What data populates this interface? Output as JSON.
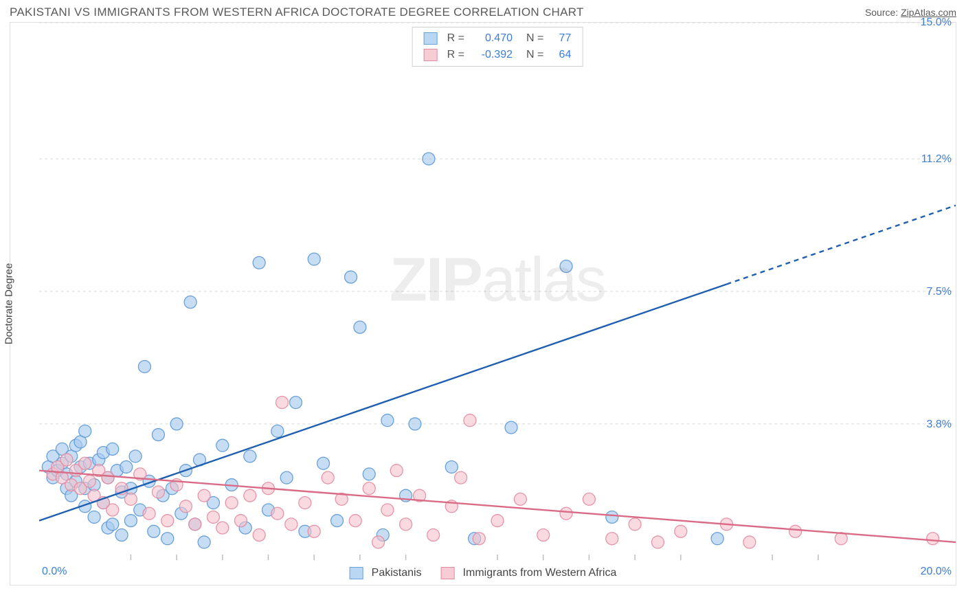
{
  "title": "PAKISTANI VS IMMIGRANTS FROM WESTERN AFRICA DOCTORATE DEGREE CORRELATION CHART",
  "source_prefix": "Source: ",
  "source_name": "ZipAtlas.com",
  "watermark": {
    "bold": "ZIP",
    "rest": "atlas"
  },
  "ylabel": "Doctorate Degree",
  "chart": {
    "type": "scatter-with-regression",
    "background_color": "#ffffff",
    "border_color": "#e0e0e0",
    "grid_color": "#d8d8d8",
    "grid_dash": "4,4",
    "x": {
      "min": 0.0,
      "max": 20.0,
      "label_min": "0.0%",
      "label_max": "20.0%"
    },
    "y": {
      "min": 0.0,
      "max": 15.0,
      "gridlines": [
        {
          "value": 3.8,
          "label": "3.8%"
        },
        {
          "value": 7.5,
          "label": "7.5%"
        },
        {
          "value": 11.2,
          "label": "11.2%"
        },
        {
          "value": 15.0,
          "label": "15.0%"
        }
      ]
    },
    "tick_color": "#bdbdbd",
    "x_ticks": [
      2,
      3,
      4,
      5,
      6,
      7,
      8,
      10,
      11,
      12,
      13,
      14,
      16,
      17
    ],
    "axis_label_color": "#3b7dd8",
    "series": [
      {
        "key": "pakistanis",
        "label": "Pakistanis",
        "R_label": "R =",
        "R": "0.470",
        "N_label": "N =",
        "N": "77",
        "marker": {
          "fill": "#a7cbee",
          "stroke": "#5c98d6",
          "opacity": 0.65,
          "r": 9
        },
        "swatch": {
          "fill": "#b9d6f2",
          "stroke": "#6aa0d8"
        },
        "line": {
          "color": "#1f5fb0",
          "width": 2.4,
          "solid_until_x": 15.0,
          "y_at_xmin": 1.1,
          "y_at_xmax": 9.9
        },
        "points": [
          [
            0.2,
            2.6
          ],
          [
            0.3,
            2.3
          ],
          [
            0.3,
            2.9
          ],
          [
            0.4,
            2.5
          ],
          [
            0.5,
            2.7
          ],
          [
            0.5,
            3.1
          ],
          [
            0.6,
            2.0
          ],
          [
            0.6,
            2.4
          ],
          [
            0.7,
            2.9
          ],
          [
            0.7,
            1.8
          ],
          [
            0.8,
            2.2
          ],
          [
            0.8,
            3.2
          ],
          [
            0.9,
            3.3
          ],
          [
            0.9,
            2.6
          ],
          [
            1.0,
            1.5
          ],
          [
            1.0,
            2.0
          ],
          [
            1.0,
            3.6
          ],
          [
            1.1,
            2.7
          ],
          [
            1.2,
            2.1
          ],
          [
            1.2,
            1.2
          ],
          [
            1.3,
            2.8
          ],
          [
            1.4,
            1.6
          ],
          [
            1.4,
            3.0
          ],
          [
            1.5,
            2.3
          ],
          [
            1.5,
            0.9
          ],
          [
            1.6,
            1.0
          ],
          [
            1.6,
            3.1
          ],
          [
            1.7,
            2.5
          ],
          [
            1.8,
            0.7
          ],
          [
            1.8,
            1.9
          ],
          [
            1.9,
            2.6
          ],
          [
            2.0,
            1.1
          ],
          [
            2.0,
            2.0
          ],
          [
            2.1,
            2.9
          ],
          [
            2.2,
            1.4
          ],
          [
            2.3,
            5.4
          ],
          [
            2.4,
            2.2
          ],
          [
            2.5,
            0.8
          ],
          [
            2.6,
            3.5
          ],
          [
            2.7,
            1.8
          ],
          [
            2.8,
            0.6
          ],
          [
            2.9,
            2.0
          ],
          [
            3.0,
            3.8
          ],
          [
            3.1,
            1.3
          ],
          [
            3.2,
            2.5
          ],
          [
            3.3,
            7.2
          ],
          [
            3.4,
            1.0
          ],
          [
            3.5,
            2.8
          ],
          [
            3.6,
            0.5
          ],
          [
            3.8,
            1.6
          ],
          [
            4.0,
            3.2
          ],
          [
            4.2,
            2.1
          ],
          [
            4.5,
            0.9
          ],
          [
            4.6,
            2.9
          ],
          [
            4.8,
            8.3
          ],
          [
            5.0,
            1.4
          ],
          [
            5.2,
            3.6
          ],
          [
            5.4,
            2.3
          ],
          [
            5.6,
            4.4
          ],
          [
            5.8,
            0.8
          ],
          [
            6.0,
            8.4
          ],
          [
            6.2,
            2.7
          ],
          [
            6.5,
            1.1
          ],
          [
            6.8,
            7.9
          ],
          [
            7.0,
            6.5
          ],
          [
            7.2,
            2.4
          ],
          [
            7.5,
            0.7
          ],
          [
            7.6,
            3.9
          ],
          [
            8.0,
            1.8
          ],
          [
            8.2,
            3.8
          ],
          [
            8.5,
            11.2
          ],
          [
            9.0,
            2.6
          ],
          [
            9.5,
            0.6
          ],
          [
            10.3,
            3.7
          ],
          [
            11.5,
            8.2
          ],
          [
            12.5,
            1.2
          ],
          [
            14.8,
            0.6
          ]
        ]
      },
      {
        "key": "wafrica",
        "label": "Immigrants from Western Africa",
        "R_label": "R =",
        "R": "-0.392",
        "N_label": "N =",
        "N": "64",
        "marker": {
          "fill": "#f4c1cb",
          "stroke": "#e38ba0",
          "opacity": 0.6,
          "r": 9
        },
        "swatch": {
          "fill": "#f7ccd5",
          "stroke": "#e28ba0"
        },
        "line": {
          "color": "#d96b86",
          "width": 2.4,
          "solid_until_x": 20.0,
          "y_at_xmin": 2.5,
          "y_at_xmax": 0.5
        },
        "points": [
          [
            0.3,
            2.4
          ],
          [
            0.4,
            2.6
          ],
          [
            0.5,
            2.3
          ],
          [
            0.6,
            2.8
          ],
          [
            0.7,
            2.1
          ],
          [
            0.8,
            2.5
          ],
          [
            0.9,
            2.0
          ],
          [
            1.0,
            2.7
          ],
          [
            1.1,
            2.2
          ],
          [
            1.2,
            1.8
          ],
          [
            1.3,
            2.5
          ],
          [
            1.4,
            1.6
          ],
          [
            1.5,
            2.3
          ],
          [
            1.6,
            1.4
          ],
          [
            1.8,
            2.0
          ],
          [
            2.0,
            1.7
          ],
          [
            2.2,
            2.4
          ],
          [
            2.4,
            1.3
          ],
          [
            2.6,
            1.9
          ],
          [
            2.8,
            1.1
          ],
          [
            3.0,
            2.1
          ],
          [
            3.2,
            1.5
          ],
          [
            3.4,
            1.0
          ],
          [
            3.6,
            1.8
          ],
          [
            3.8,
            1.2
          ],
          [
            4.0,
            0.9
          ],
          [
            4.2,
            1.6
          ],
          [
            4.4,
            1.1
          ],
          [
            4.6,
            1.8
          ],
          [
            4.8,
            0.7
          ],
          [
            5.0,
            2.0
          ],
          [
            5.2,
            1.3
          ],
          [
            5.3,
            4.4
          ],
          [
            5.5,
            1.0
          ],
          [
            5.8,
            1.6
          ],
          [
            6.0,
            0.8
          ],
          [
            6.3,
            2.3
          ],
          [
            6.6,
            1.7
          ],
          [
            6.9,
            1.1
          ],
          [
            7.2,
            2.0
          ],
          [
            7.4,
            0.5
          ],
          [
            7.6,
            1.4
          ],
          [
            7.8,
            2.5
          ],
          [
            8.0,
            1.0
          ],
          [
            8.3,
            1.8
          ],
          [
            8.6,
            0.7
          ],
          [
            9.0,
            1.5
          ],
          [
            9.2,
            2.3
          ],
          [
            9.4,
            3.9
          ],
          [
            9.6,
            0.6
          ],
          [
            10.0,
            1.1
          ],
          [
            10.5,
            1.7
          ],
          [
            11.0,
            0.7
          ],
          [
            11.5,
            1.3
          ],
          [
            12.0,
            1.7
          ],
          [
            12.5,
            0.6
          ],
          [
            13.0,
            1.0
          ],
          [
            13.5,
            0.5
          ],
          [
            14.0,
            0.8
          ],
          [
            15.0,
            1.0
          ],
          [
            15.5,
            0.5
          ],
          [
            16.5,
            0.8
          ],
          [
            17.5,
            0.6
          ],
          [
            19.5,
            0.6
          ]
        ]
      }
    ]
  }
}
